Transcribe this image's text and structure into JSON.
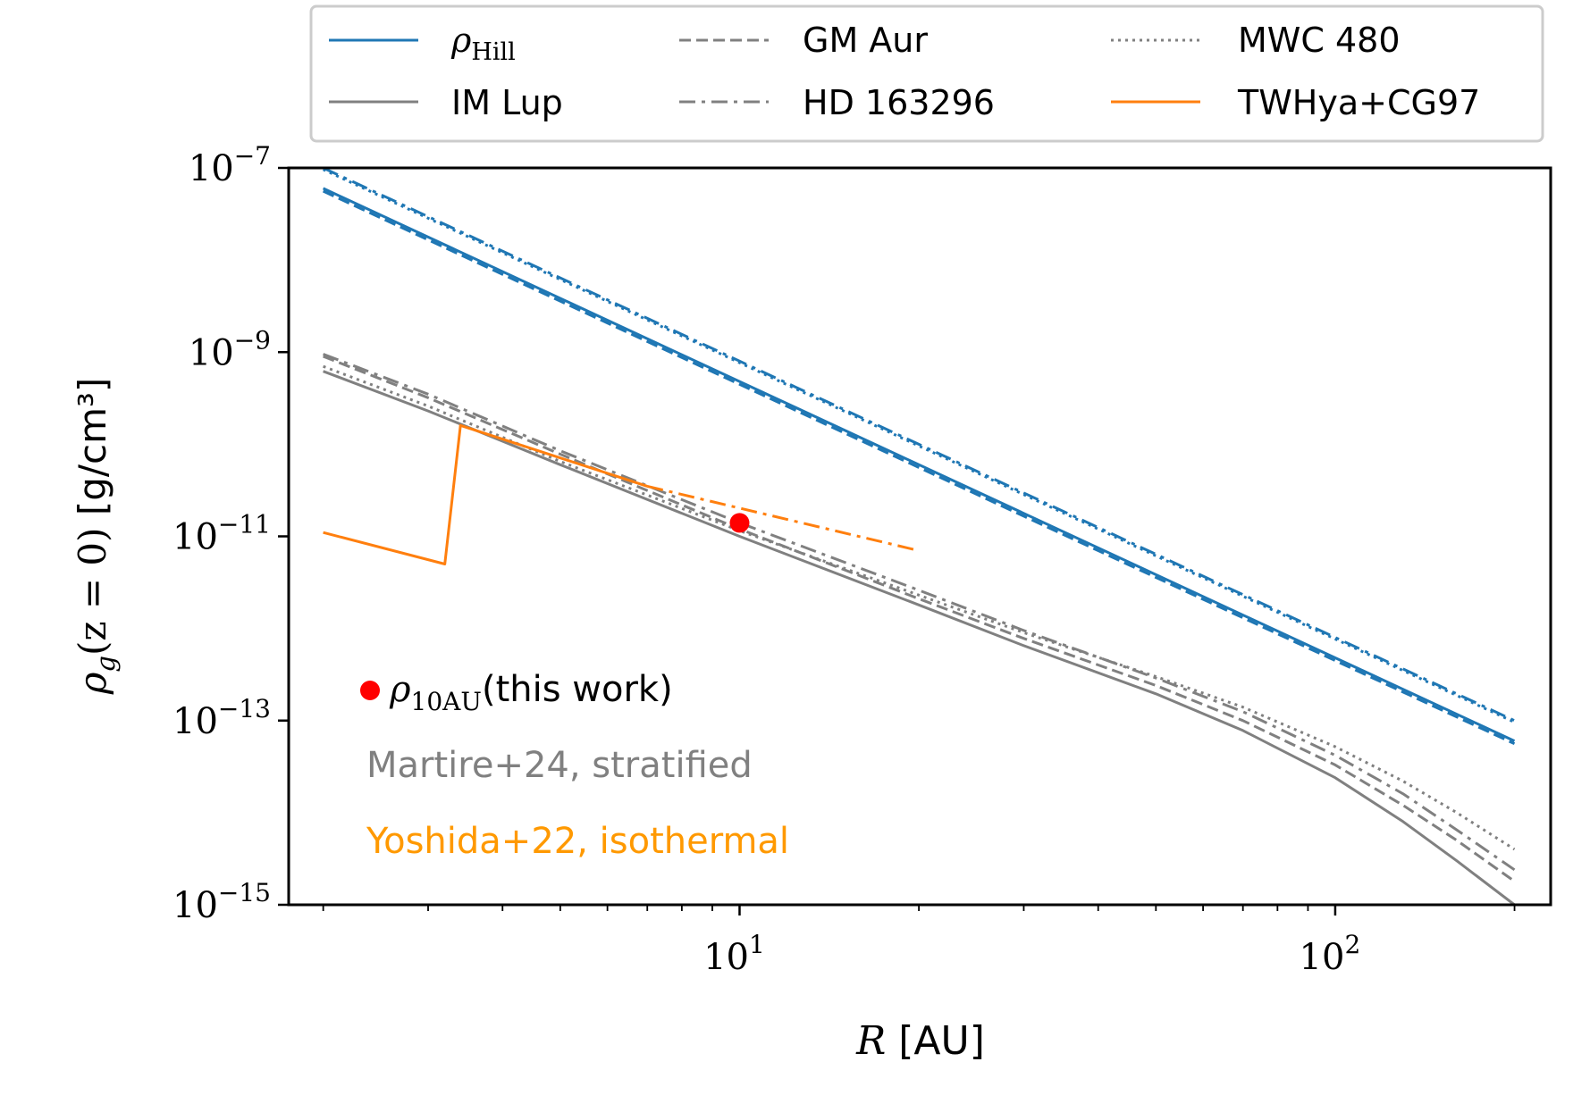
{
  "chart_data": {
    "type": "line",
    "x_scale": "log",
    "y_scale": "log",
    "xlim": [
      1.75,
      230
    ],
    "ylim": [
      1e-15,
      1e-07
    ],
    "x_ticks": [
      {
        "value": 10,
        "base": "10",
        "exp": "1"
      },
      {
        "value": 100,
        "base": "10",
        "exp": "2"
      }
    ],
    "y_ticks": [
      {
        "value": 1e-07,
        "base": "10",
        "exp": "−7"
      },
      {
        "value": 1e-09,
        "base": "10",
        "exp": "−9"
      },
      {
        "value": 1e-11,
        "base": "10",
        "exp": "−11"
      },
      {
        "value": 1e-13,
        "base": "10",
        "exp": "−13"
      },
      {
        "value": 1e-15,
        "base": "10",
        "exp": "−15"
      }
    ],
    "xlabel": {
      "italic": "R",
      "rest": " [AU]"
    },
    "ylabel": {
      "rho": "ρ",
      "sub": "g",
      "args": "(z = 0)",
      "unit": " [g/cm³]"
    },
    "legend": {
      "placement": "top (above axes)",
      "entries": [
        {
          "label": "ρ",
          "sub": "Hill",
          "color": "#1f77b4",
          "style": "solid"
        },
        {
          "label": "IM Lup",
          "color": "#808080",
          "style": "solid"
        },
        {
          "label": "GM Aur",
          "color": "#808080",
          "style": "dashed"
        },
        {
          "label": "HD 163296",
          "color": "#808080",
          "style": "dashdot"
        },
        {
          "label": "MWC 480",
          "color": "#808080",
          "style": "dotted"
        },
        {
          "label": "TWHya+CG97",
          "color": "#ff7f0e",
          "style": "solid"
        }
      ]
    },
    "annotations": [
      {
        "rho": "ρ",
        "sub": "10AU",
        "text": "(this work)",
        "color": "#000000",
        "marker_color": "#ff0000"
      },
      {
        "text": "Martire+24, stratified",
        "color": "#808080"
      },
      {
        "text": "Yoshida+22, isothermal",
        "color": "#ff9900"
      }
    ],
    "series": [
      {
        "name": "IM Lup",
        "group": "hill",
        "color": "#1f77b4",
        "style": "solid",
        "x": [
          2,
          200
        ],
        "y": [
          6e-08,
          6e-14
        ]
      },
      {
        "name": "GM Aur",
        "group": "hill",
        "color": "#1f77b4",
        "style": "dashed",
        "x": [
          2,
          200
        ],
        "y": [
          5.6e-08,
          5.6e-14
        ]
      },
      {
        "name": "HD 163296",
        "group": "hill",
        "color": "#1f77b4",
        "style": "dashdot",
        "x": [
          2,
          200
        ],
        "y": [
          1e-07,
          1e-13
        ]
      },
      {
        "name": "MWC 480",
        "group": "hill",
        "color": "#1f77b4",
        "style": "dotted",
        "x": [
          2,
          200
        ],
        "y": [
          9.6e-08,
          9.6e-14
        ]
      },
      {
        "name": "IM Lup",
        "group": "density",
        "color": "#808080",
        "style": "solid",
        "x": [
          2,
          3,
          5,
          10,
          20,
          30,
          50,
          70,
          100,
          130,
          160,
          200
        ],
        "y": [
          6.2e-10,
          2.3e-10,
          6e-11,
          1e-11,
          1.8e-12,
          6.5e-13,
          1.95e-13,
          7.8e-14,
          2.4e-14,
          8e-15,
          3e-15,
          1e-15
        ]
      },
      {
        "name": "GM Aur",
        "group": "density",
        "color": "#808080",
        "style": "dashed",
        "x": [
          2,
          3,
          5,
          10,
          20,
          30,
          50,
          70,
          100,
          130,
          160,
          200
        ],
        "y": [
          9e-10,
          3.2e-10,
          7.8e-11,
          1.2e-11,
          2.1e-12,
          7.8e-13,
          2.4e-13,
          1e-13,
          3.3e-14,
          1.2e-14,
          5e-15,
          1.8e-15
        ]
      },
      {
        "name": "HD 163296",
        "group": "density",
        "color": "#808080",
        "style": "dashdot",
        "x": [
          2,
          3,
          5,
          10,
          20,
          30,
          50,
          70,
          100,
          130,
          160,
          200
        ],
        "y": [
          9.5e-10,
          3.5e-10,
          8.5e-11,
          1.4e-11,
          2.6e-12,
          9.5e-13,
          2.9e-13,
          1.25e-13,
          4.2e-14,
          1.6e-14,
          6.5e-15,
          2.4e-15
        ]
      },
      {
        "name": "MWC 480",
        "group": "density",
        "color": "#808080",
        "style": "dotted",
        "x": [
          2,
          3,
          5,
          10,
          20,
          30,
          50,
          70,
          100,
          130,
          160,
          200
        ],
        "y": [
          7e-10,
          2.6e-10,
          6.5e-11,
          1.15e-11,
          2.3e-12,
          9e-13,
          3e-13,
          1.4e-13,
          5.2e-14,
          2.2e-14,
          1e-14,
          4e-15
        ]
      },
      {
        "name": "TWHya+CG97",
        "color": "#ff7f0e",
        "style": "solid",
        "x": [
          2,
          3.2,
          3.4,
          7
        ],
        "y": [
          1.1e-11,
          5e-12,
          1.6e-10,
          3.5e-11
        ]
      },
      {
        "name": "TWHya+CG97",
        "color": "#ff7f0e",
        "style": "dashdot",
        "x": [
          7,
          20
        ],
        "y": [
          3.5e-11,
          7e-12
        ]
      }
    ],
    "points": [
      {
        "name": "ρ10AU (this work)",
        "color": "#ff0000",
        "x": [
          10
        ],
        "y": [
          1.4e-11
        ]
      }
    ]
  }
}
